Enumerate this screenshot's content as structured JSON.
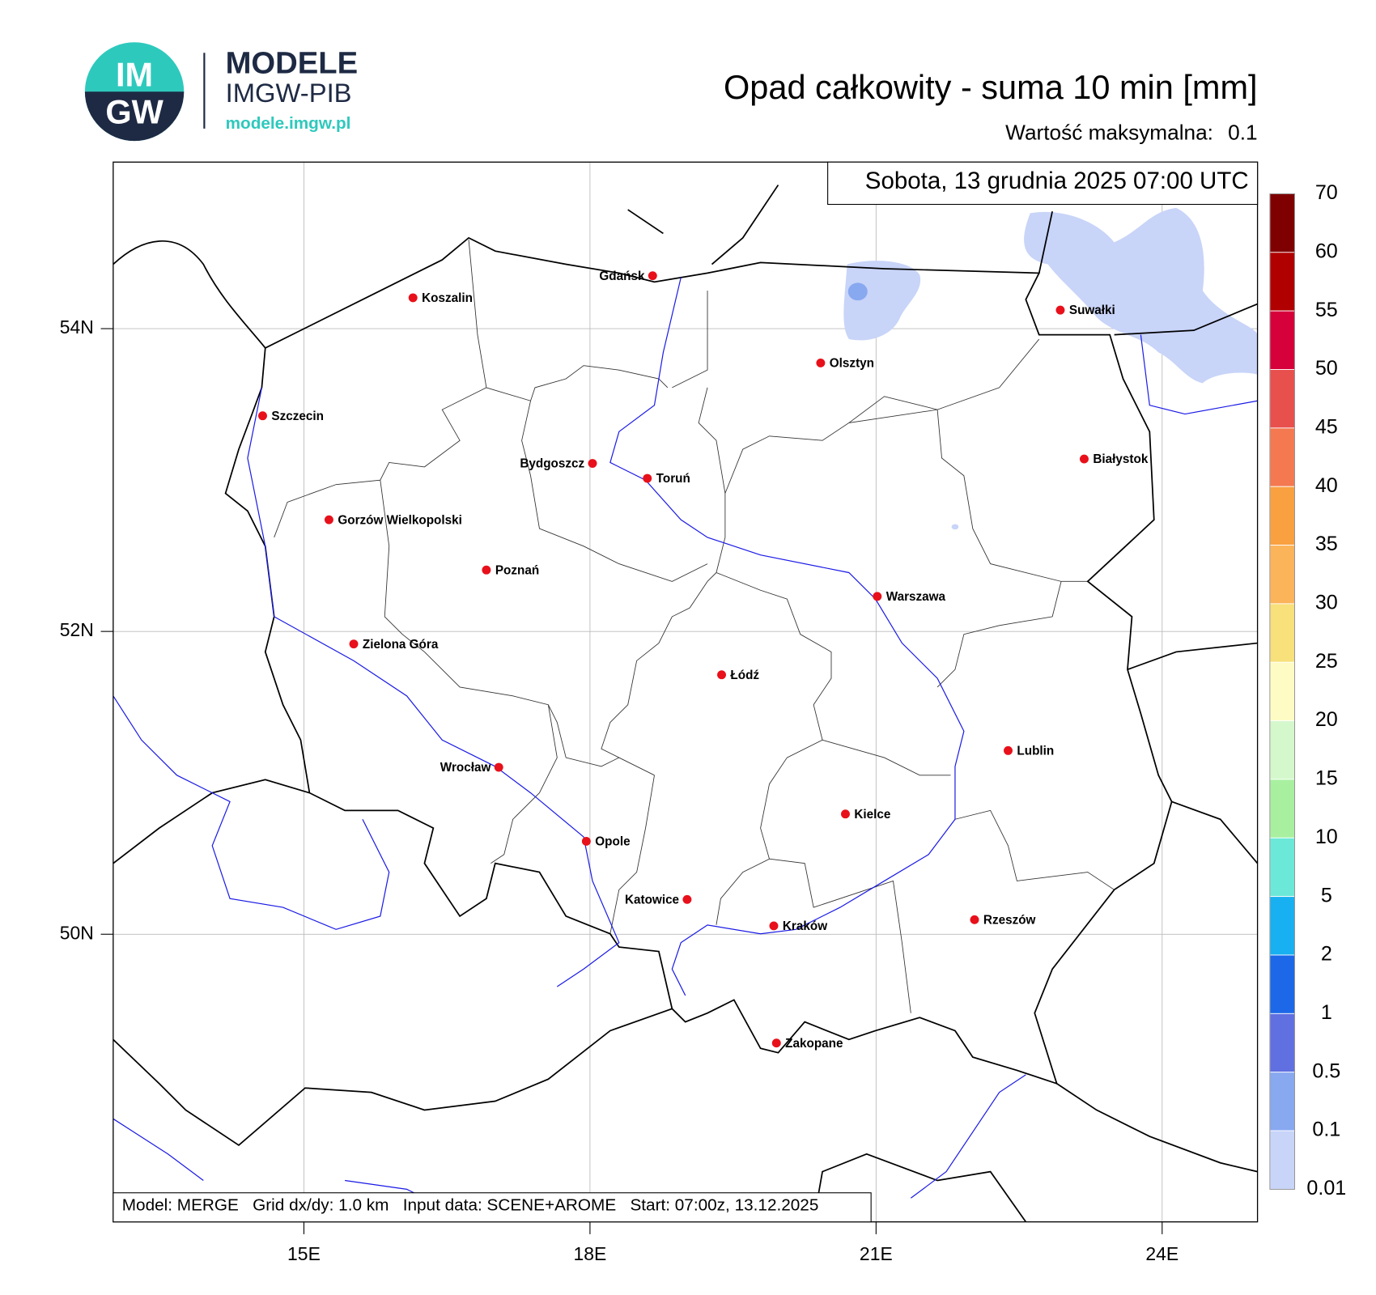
{
  "header": {
    "logo": [
      "IM",
      "GW"
    ],
    "brand": "MODELE",
    "org": "IMGW-PIB",
    "url": "modele.imgw.pl"
  },
  "title": "Opad całkowity - suma 10 min [mm]",
  "max_label": "Wartość maksymalna:",
  "max_value": 0.1,
  "date": "Sobota, 13 grudnia 2025 07:00 UTC",
  "footer": "Model: MERGE   Grid dx/dy: 1.0 km   Input data: SCENE+AROME   Start: 07:00z, 13.12.2025",
  "map": {
    "lonlim": [
      13,
      25
    ],
    "latlim": [
      48.1,
      55.1
    ],
    "lonticks": [
      {
        "value": 15,
        "label": "15E"
      },
      {
        "value": 18,
        "label": "18E"
      },
      {
        "value": 21,
        "label": "21E"
      },
      {
        "value": 24,
        "label": "24E"
      }
    ],
    "latticks": [
      {
        "value": 54,
        "label": "54N"
      },
      {
        "value": 52,
        "label": "52N"
      },
      {
        "value": 50,
        "label": "50N"
      }
    ],
    "cities": [
      "Koszalin",
      "Gdańsk",
      "Suwałki",
      "Olsztyn",
      "Szczecin",
      "Białystok",
      "Bydgoszcz",
      "Toruń",
      "Gorzów Wielkopolski",
      "Poznań",
      "Warszawa",
      "Zielona Góra",
      "Łódź",
      "Lublin",
      "Wrocław",
      "Kielce",
      "Opole",
      "Katowice",
      "Kraków",
      "Rzeszów",
      "Zakopane"
    ]
  },
  "legend": {
    "levels": [
      70,
      60,
      55,
      50,
      45,
      40,
      35,
      30,
      25,
      20,
      15,
      10,
      5,
      2,
      1,
      0.5,
      0.1,
      0.01
    ],
    "colors": [
      "#7f0000",
      "#b00000",
      "#d6003a",
      "#e8504e",
      "#f47850",
      "#f9a040",
      "#fbb45a",
      "#f8e07a",
      "#fefcc4",
      "#d4f8cc",
      "#a8f0a0",
      "#6ce8d8",
      "#18b0f0",
      "#1c68e8",
      "#6070e0",
      "#88a8f0",
      "#c8d4f8"
    ]
  }
}
